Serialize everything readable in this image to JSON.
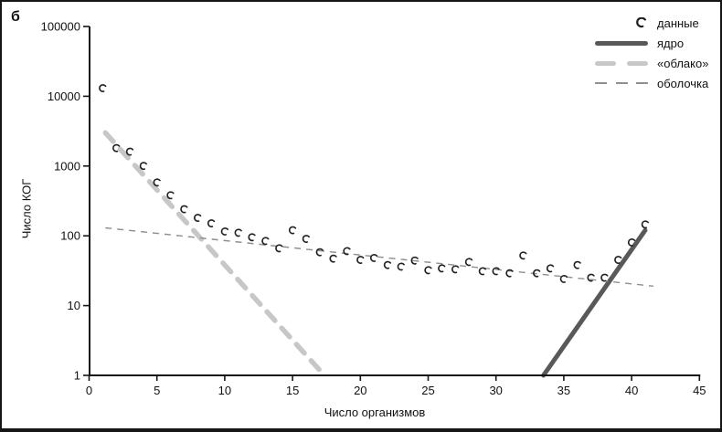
{
  "figure_label": "б",
  "axes": {
    "y_label": "Число КОГ",
    "x_label": "Число организмов"
  },
  "legend": {
    "items": [
      {
        "label": "данные",
        "style": "marker"
      },
      {
        "label": "ядро",
        "style": "core"
      },
      {
        "label": "«облако»",
        "style": "cloud"
      },
      {
        "label": "оболочка",
        "style": "shell"
      }
    ]
  },
  "colors": {
    "marker": "#212121",
    "core": "#595959",
    "cloud": "#c7c7c7",
    "shell": "#8f8f8f",
    "axis": "#161616",
    "text": "#111111"
  },
  "chart_data": {
    "type": "scatter",
    "title": "",
    "xlabel": "Число организмов",
    "ylabel": "Число КОГ",
    "y_scale": "log",
    "xlim": [
      0,
      45
    ],
    "ylim": [
      1,
      100000
    ],
    "x_ticks": [
      0,
      5,
      10,
      15,
      20,
      25,
      30,
      35,
      40,
      45
    ],
    "y_ticks": [
      100000,
      10000,
      1000,
      100,
      10,
      1
    ],
    "grid": false,
    "legend_position": "top-right",
    "series": [
      {
        "name": "данные",
        "type": "scatter",
        "style": "marker",
        "x": [
          1,
          2,
          3,
          4,
          5,
          6,
          7,
          8,
          9,
          10,
          11,
          12,
          13,
          14,
          15,
          16,
          17,
          18,
          19,
          20,
          21,
          22,
          23,
          24,
          25,
          26,
          27,
          28,
          29,
          30,
          31,
          32,
          33,
          34,
          35,
          36,
          37,
          38,
          39,
          40,
          41
        ],
        "y": [
          13000,
          1800,
          1600,
          1000,
          580,
          380,
          240,
          180,
          150,
          115,
          110,
          95,
          84,
          66,
          120,
          90,
          58,
          47,
          60,
          45,
          48,
          38,
          36,
          44,
          32,
          34,
          33,
          42,
          31,
          31,
          29,
          52,
          29,
          34,
          24,
          38,
          25,
          25,
          45,
          80,
          145
        ]
      },
      {
        "name": "ядро",
        "type": "line",
        "style": "core",
        "x": [
          33.5,
          41
        ],
        "y": [
          1,
          120
        ]
      },
      {
        "name": "«облако»",
        "type": "line",
        "style": "cloud",
        "x": [
          1.2,
          17.35
        ],
        "y": [
          3000,
          1
        ]
      },
      {
        "name": "оболочка",
        "type": "line",
        "style": "shell",
        "x": [
          1.2,
          41.6
        ],
        "y": [
          130,
          19
        ]
      }
    ]
  }
}
